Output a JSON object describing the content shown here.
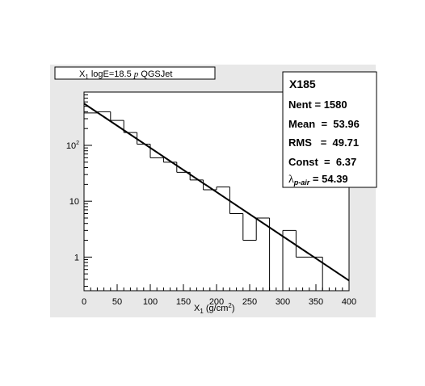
{
  "chart_data": {
    "type": "bar",
    "title": "X1 logE=18.5 p QGSJet",
    "title_parts": {
      "a": "X",
      "sub": "1",
      "b": " logE=18.5 ",
      "p": "p",
      "c": " QGSJet"
    },
    "xlabel_parts": {
      "a": "X",
      "sub": "1",
      "b": " (g/cm",
      "sup": "2",
      "c": ")"
    },
    "xlim": [
      0,
      400
    ],
    "ylim": [
      0.25,
      900
    ],
    "y_scale": "log",
    "x_ticks": [
      "0",
      "50",
      "100",
      "150",
      "200",
      "250",
      "300",
      "350",
      "400"
    ],
    "y_ticks": [
      {
        "value": 1,
        "label": "1"
      },
      {
        "value": 10,
        "label": "10"
      },
      {
        "value": 100,
        "label": "10",
        "sup": "2"
      }
    ],
    "bin_width": 20,
    "bins_x": [
      0,
      20,
      40,
      60,
      80,
      100,
      120,
      140,
      160,
      180,
      200,
      220,
      240,
      260,
      280,
      300,
      320,
      340,
      360,
      380
    ],
    "bins_y": [
      380,
      400,
      280,
      170,
      105,
      60,
      50,
      33,
      24,
      16,
      18,
      6,
      2,
      5,
      0,
      3,
      1,
      1,
      0,
      0
    ],
    "fit_line": {
      "x": [
        0,
        400
      ],
      "y": [
        560,
        0.38
      ]
    },
    "stats": {
      "name": "X185",
      "rows": [
        {
          "label": "Nent = 1580"
        },
        {
          "label": "Mean  =  53.96"
        },
        {
          "label": "RMS   =  49.71"
        },
        {
          "label": "Const  =  6.37"
        },
        {
          "label": "lambda",
          "sub": "p-air",
          "value": " = 54.39"
        }
      ]
    }
  }
}
